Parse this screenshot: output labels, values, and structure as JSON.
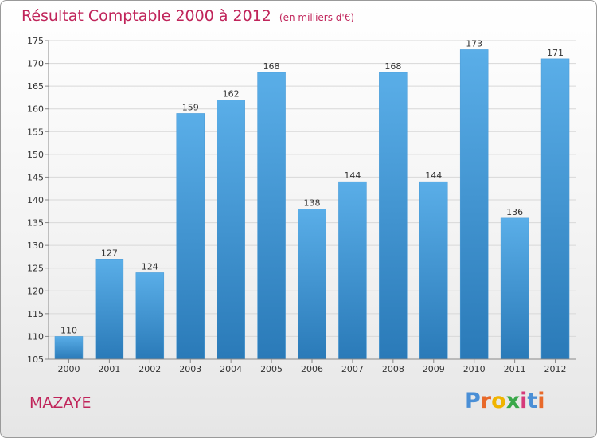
{
  "title": "Résultat Comptable 2000 à 2012",
  "subtitle": "(en milliers d'€)",
  "commune": "MAZAYE",
  "logo": {
    "letters": [
      "P",
      "r",
      "o",
      "x",
      "i",
      "t",
      "i"
    ],
    "colors": [
      "#4a8fd6",
      "#e8692a",
      "#f0b400",
      "#3aa84a",
      "#d63a7a",
      "#4a8fd6",
      "#e8692a"
    ]
  },
  "colors": {
    "bar_top": "#5aaee8",
    "bar_bottom": "#2a7ab8",
    "title": "#c0245a"
  },
  "chart_data": {
    "type": "bar",
    "categories": [
      "2000",
      "2001",
      "2002",
      "2003",
      "2004",
      "2005",
      "2006",
      "2007",
      "2008",
      "2009",
      "2010",
      "2011",
      "2012"
    ],
    "values": [
      110,
      127,
      124,
      159,
      162,
      168,
      138,
      144,
      168,
      144,
      173,
      136,
      171
    ],
    "ylim": [
      105,
      175
    ],
    "yticks": [
      105,
      110,
      115,
      120,
      125,
      130,
      135,
      140,
      145,
      150,
      155,
      160,
      165,
      170,
      175
    ],
    "grid": true,
    "xlabel": "",
    "ylabel": ""
  }
}
